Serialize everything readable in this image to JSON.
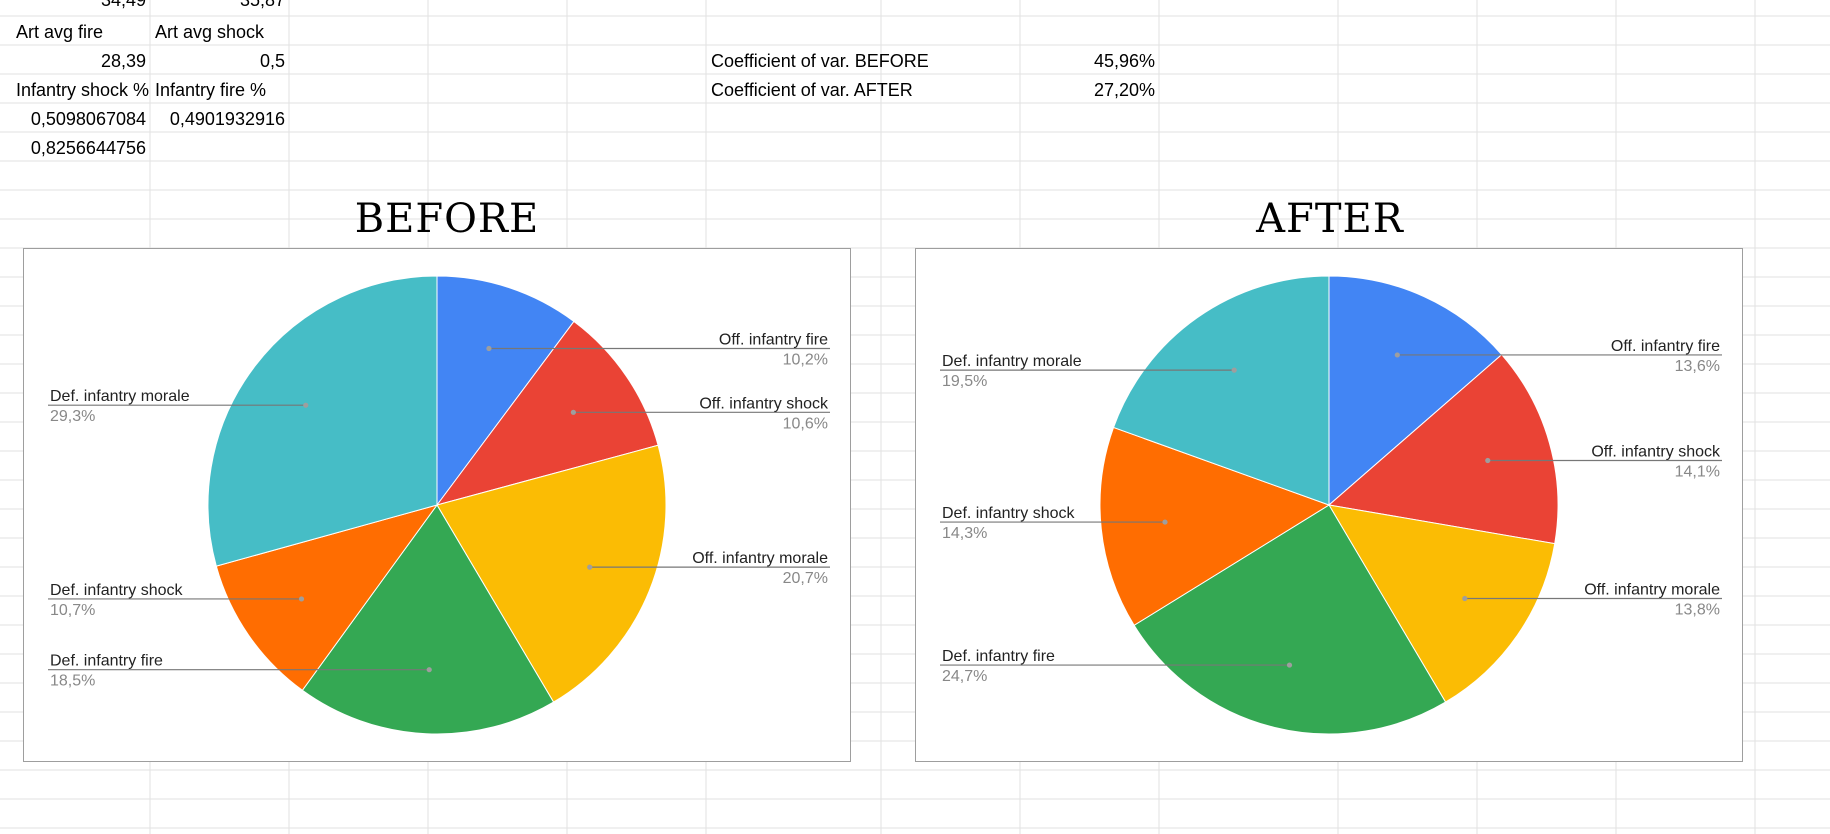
{
  "sheet": {
    "rows": [
      {
        "a": "34,49",
        "b": "35,87"
      },
      {
        "a": "Art avg fire",
        "b": "Art avg shock"
      },
      {
        "a": "28,39",
        "b": "0,5"
      },
      {
        "a": "Infantry shock %",
        "b": "Infantry fire %"
      },
      {
        "a": "0,5098067084",
        "b": "0,4901932916"
      },
      {
        "a": "0,8256644756",
        "b": ""
      }
    ],
    "coef_before_label": "Coefficient of var. BEFORE",
    "coef_before_value": "45,96%",
    "coef_after_label": "Coefficient of var. AFTER",
    "coef_after_value": "27,20%"
  },
  "colors": {
    "off_fire": "#4285f4",
    "off_shock": "#ea4335",
    "off_morale": "#fbbc04",
    "def_fire": "#34a853",
    "def_shock": "#ff6d01",
    "def_morale": "#46bdc6"
  },
  "chart_data": [
    {
      "type": "pie",
      "title": "BEFORE",
      "categories": [
        "Off. infantry fire",
        "Off. infantry shock",
        "Off. infantry morale",
        "Def. infantry fire",
        "Def. infantry shock",
        "Def. infantry morale"
      ],
      "values": [
        10.2,
        10.6,
        20.7,
        18.5,
        10.7,
        29.3
      ],
      "value_labels": [
        "10,2%",
        "10,6%",
        "20,7%",
        "18,5%",
        "10,7%",
        "29,3%"
      ]
    },
    {
      "type": "pie",
      "title": "AFTER",
      "categories": [
        "Off. infantry fire",
        "Off. infantry shock",
        "Off. infantry morale",
        "Def. infantry fire",
        "Def. infantry shock",
        "Def. infantry morale"
      ],
      "values": [
        13.6,
        14.1,
        13.8,
        24.7,
        14.3,
        19.5
      ],
      "value_labels": [
        "13,6%",
        "14,1%",
        "13,8%",
        "24,7%",
        "14,3%",
        "19,5%"
      ]
    }
  ]
}
